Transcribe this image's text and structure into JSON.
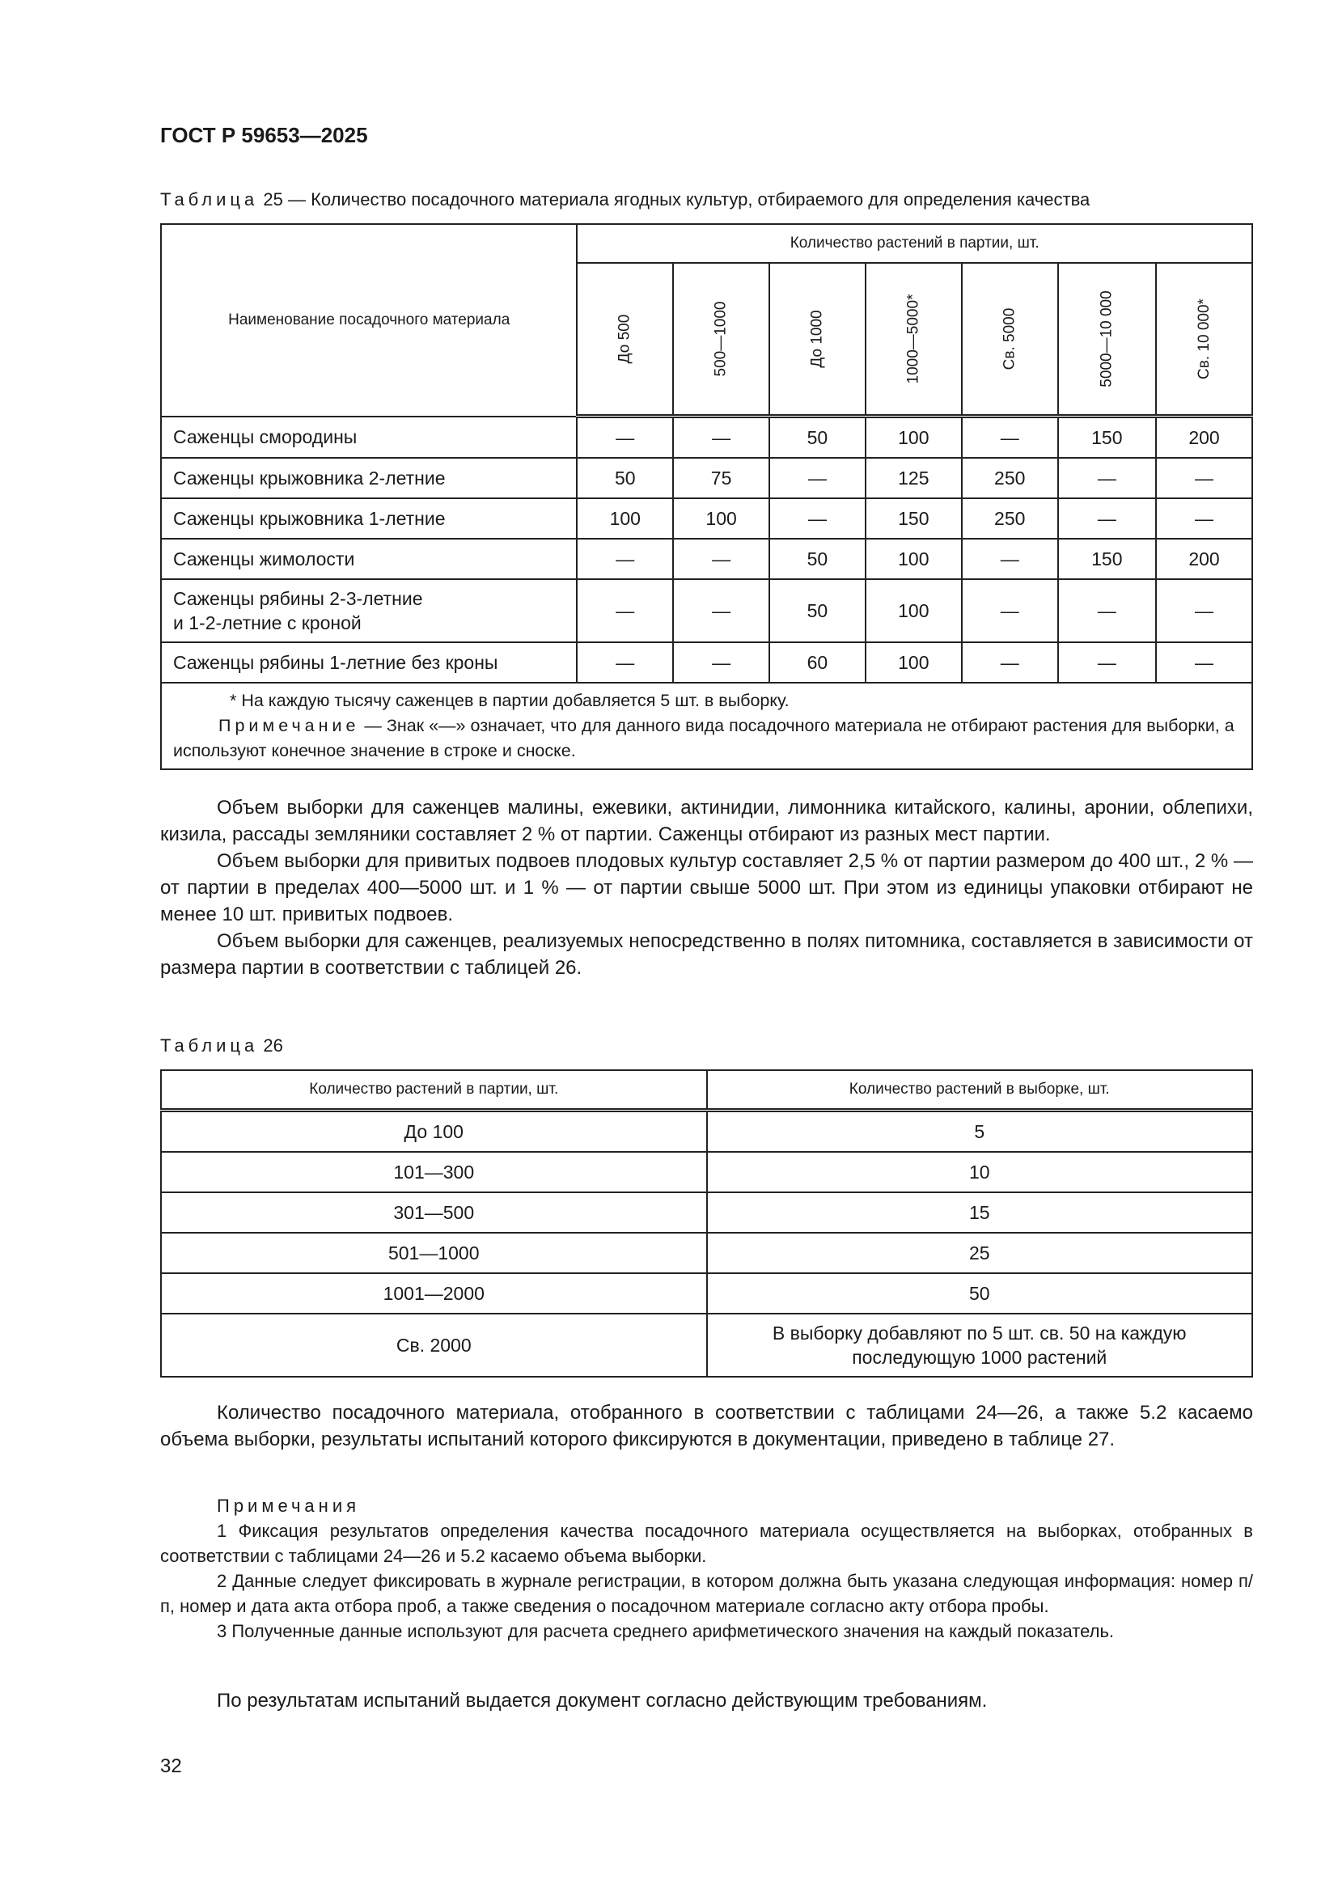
{
  "header": "ГОСТ Р 59653—2025",
  "table25": {
    "label": "Таблица",
    "caption": "25 — Количество посадочного материала ягодных культур, отбираемого для определения качества",
    "name_header": "Наименование посадочного материала",
    "group_header": "Количество растений в партии, шт.",
    "columns": [
      "До 500",
      "500—1000",
      "До 1000",
      "1000—5000*",
      "Св. 5000",
      "5000—10 000",
      "Св. 10 000*"
    ],
    "rows": [
      {
        "name": "Саженцы смородины",
        "values": [
          "—",
          "—",
          "50",
          "100",
          "—",
          "150",
          "200"
        ]
      },
      {
        "name": "Саженцы крыжовника 2-летние",
        "values": [
          "50",
          "75",
          "—",
          "125",
          "250",
          "—",
          "—"
        ]
      },
      {
        "name": "Саженцы крыжовника 1-летние",
        "values": [
          "100",
          "100",
          "—",
          "150",
          "250",
          "—",
          "—"
        ]
      },
      {
        "name": "Саженцы жимолости",
        "values": [
          "—",
          "—",
          "50",
          "100",
          "—",
          "150",
          "200"
        ]
      },
      {
        "name": "Саженцы рябины 2-3-летние\nи 1-2-летние с кроной",
        "values": [
          "—",
          "—",
          "50",
          "100",
          "—",
          "—",
          "—"
        ]
      },
      {
        "name": "Саженцы рябины 1-летние без кроны",
        "values": [
          "—",
          "—",
          "60",
          "100",
          "—",
          "—",
          "—"
        ]
      }
    ],
    "footnote": "* На каждую тысячу саженцев в партии добавляется 5 шт. в выборку.",
    "note_label": "Примечание",
    "note_text": " — Знак «—» означает, что для данного вида посадочного материала не отбирают растения для выборки, а используют конечное значение в строке и сноске."
  },
  "paragraphs": [
    "Объем выборки для саженцев малины, ежевики, актинидии, лимонника китайского, калины, аронии, облепихи, кизила, рассады земляники составляет 2 % от партии. Саженцы отбирают из разных мест партии.",
    "Объем выборки для привитых подвоев плодовых культур составляет 2,5 % от партии размером до 400 шт., 2 % — от партии в пределах 400—5000 шт. и 1 % — от партии свыше 5000 шт. При этом из единицы упаковки отбирают не менее 10 шт. привитых подвоев.",
    "Объем выборки для саженцев, реализуемых непосредственно в полях питомника, составляется в зависимости от размера партии в соответствии с таблицей 26."
  ],
  "table26": {
    "label": "Таблица",
    "number": "26",
    "headers": [
      "Количество растений в партии, шт.",
      "Количество растений в выборке, шт."
    ],
    "rows": [
      [
        "До 100",
        "5"
      ],
      [
        "101—300",
        "10"
      ],
      [
        "301—500",
        "15"
      ],
      [
        "501—1000",
        "25"
      ],
      [
        "1001—2000",
        "50"
      ],
      [
        "Св. 2000",
        "В выборку добавляют по 5 шт. св. 50 на каждую\nпоследующую 1000 растений"
      ]
    ]
  },
  "after_paragraph": "Количество посадочного материала, отобранного в соответствии с таблицами 24—26, а также 5.2 касаемо объема выборки, результаты испытаний которого фиксируются в документации, приведено в таблице 27.",
  "notes": {
    "title": "Примечания",
    "items": [
      "1 Фиксация результатов определения качества посадочного материала осуществляется на выборках, отобранных в соответствии с таблицами 24—26 и 5.2 касаемо объема выборки.",
      "2 Данные следует фиксировать в журнале регистрации, в котором должна быть указана следующая информация: номер п/п, номер и дата акта отбора проб, а также сведения о посадочном материале согласно акту отбора пробы.",
      "3 Полученные данные используют для расчета среднего арифметического значения на каждый показатель."
    ]
  },
  "final_paragraph": "По результатам испытаний выдается документ согласно действующим требованиям.",
  "page_number": "32"
}
